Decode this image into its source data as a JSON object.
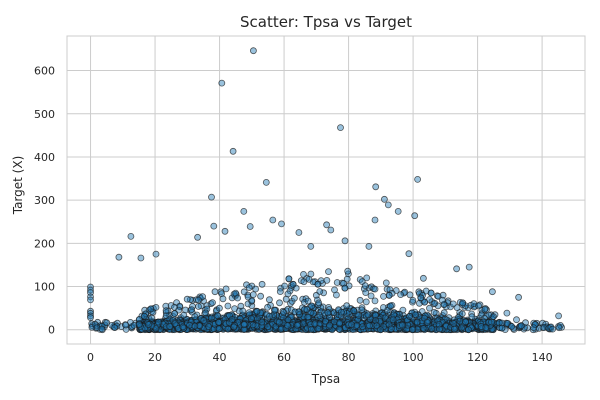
{
  "chart_data": {
    "type": "scatter",
    "title": "Scatter: Tpsa vs Target",
    "xlabel": "Tpsa",
    "ylabel": "Target (X)",
    "xlim": [
      -7.3,
      153.3
    ],
    "ylim": [
      -33,
      680
    ],
    "xticks": [
      0,
      20,
      40,
      60,
      80,
      100,
      120,
      140
    ],
    "yticks": [
      0,
      100,
      200,
      300,
      400,
      500,
      600
    ],
    "grid": true,
    "legend": "none",
    "marker_color": "#1f77b4",
    "marker_edge_color": "#1a1a1a",
    "marker_alpha": 0.45,
    "outliers": {
      "x": [
        50.5,
        40.7,
        77.5,
        44.2,
        54.5,
        101.4,
        88.4,
        37.5,
        91.1,
        47.5,
        92.3,
        95.4,
        100.5,
        88.2,
        56.5,
        59.2,
        12.5,
        33.2,
        73.2,
        20.3,
        38.2,
        49.5,
        78.9,
        86.3,
        98.7,
        103.2,
        117.4,
        64.6,
        74.5,
        68.3,
        41.7,
        8.8,
        113.5,
        15.6,
        132.7,
        124.6,
        145.1
      ],
      "y": [
        646,
        571,
        468,
        413,
        341,
        348,
        331,
        307,
        302,
        274,
        289,
        274,
        264,
        254,
        254,
        245,
        216,
        214,
        243,
        175,
        240,
        239,
        206,
        193,
        176,
        119,
        145,
        225,
        231,
        193,
        228,
        168,
        141,
        166,
        75,
        88,
        32
      ]
    },
    "cluster": {
      "count": 3000,
      "x_range": [
        0,
        147
      ],
      "y_median": 10,
      "y_max_typical": 150,
      "seed": 7
    },
    "zero_tpsa_points": {
      "x": [
        0,
        0,
        0,
        0,
        0,
        0,
        0,
        0,
        0
      ],
      "y": [
        99,
        92,
        86,
        76,
        69,
        43,
        38,
        32,
        28
      ]
    }
  }
}
